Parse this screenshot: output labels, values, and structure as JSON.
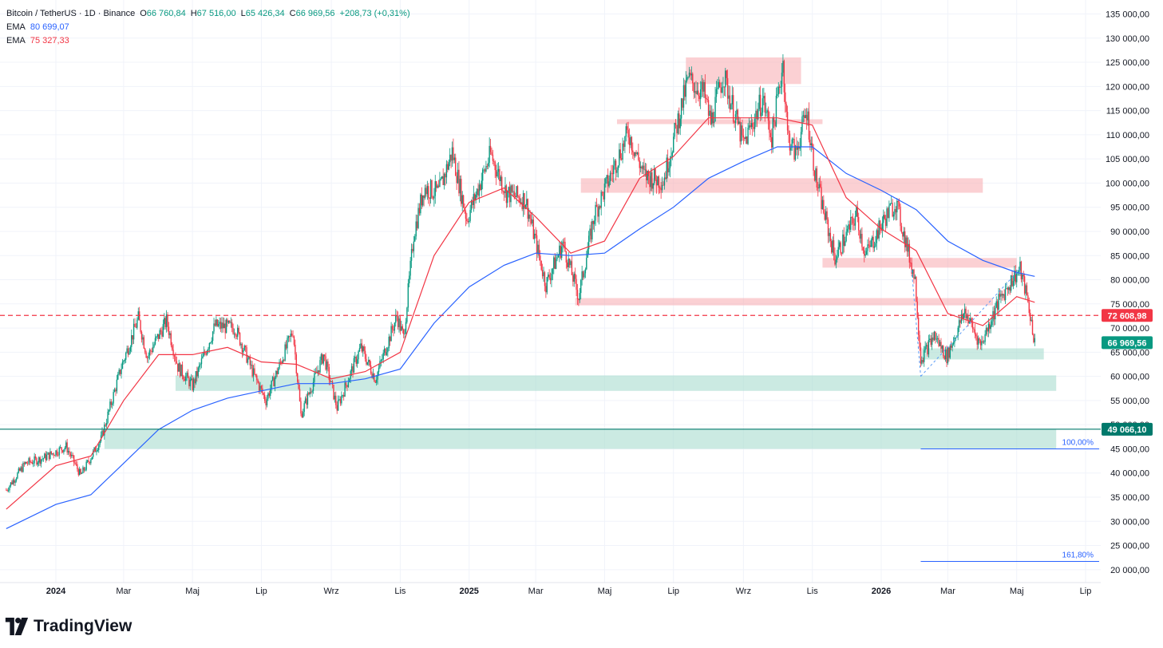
{
  "header": {
    "symbol": "Bitcoin / TetherUS · 1D · Binance",
    "open_label": "O",
    "open": "66 760,84",
    "high_label": "H",
    "high": "67 516,00",
    "low_label": "L",
    "low": "65 426,34",
    "close_label": "C",
    "close": "66 969,56",
    "change": "+208,73 (+0,31%)",
    "ema1_label": "EMA",
    "ema1_value": "80 699,07",
    "ema2_label": "EMA",
    "ema2_value": "75 327,33"
  },
  "brand": {
    "name": "TradingView"
  },
  "colors": {
    "up": "#089981",
    "down": "#f23645",
    "ema_fast": "#f23645",
    "ema_slow": "#2962ff",
    "resistance_zone": "#f7a9ae",
    "support_zone": "#a8dccf",
    "grid": "#f0f3fa"
  },
  "chart_data": {
    "type": "candlestick",
    "ylim": [
      20000,
      137000
    ],
    "x_start": "2023-11-18",
    "x_end": "2026-05-17",
    "y_ticks": [
      "135 000,00",
      "130 000,00",
      "125 000,00",
      "120 000,00",
      "115 000,00",
      "110 000,00",
      "105 000,00",
      "100 000,00",
      "95 000,00",
      "90 000,00",
      "85 000,00",
      "80 000,00",
      "75 000,00",
      "70 000,00",
      "65 000,00",
      "60 000,00",
      "55 000,00",
      "50 000,00",
      "45 000,00",
      "40 000,00",
      "35 000,00",
      "30 000,00",
      "25 000,00",
      "20 000,00"
    ],
    "x_ticks": [
      {
        "label": "2024",
        "date": "2024-01-01",
        "bold": true
      },
      {
        "label": "Mar",
        "date": "2024-03-01"
      },
      {
        "label": "Maj",
        "date": "2024-05-01"
      },
      {
        "label": "Lip",
        "date": "2024-07-01"
      },
      {
        "label": "Wrz",
        "date": "2024-09-01"
      },
      {
        "label": "Lis",
        "date": "2024-11-01"
      },
      {
        "label": "2025",
        "date": "2025-01-01",
        "bold": true
      },
      {
        "label": "Mar",
        "date": "2025-03-01"
      },
      {
        "label": "Maj",
        "date": "2025-05-01"
      },
      {
        "label": "Lip",
        "date": "2025-07-01"
      },
      {
        "label": "Wrz",
        "date": "2025-09-01"
      },
      {
        "label": "Lis",
        "date": "2025-11-01"
      },
      {
        "label": "2026",
        "date": "2026-01-01",
        "bold": true
      },
      {
        "label": "Mar",
        "date": "2026-03-01"
      },
      {
        "label": "Maj",
        "date": "2026-05-01"
      },
      {
        "label": "Lip",
        "date": "2026-07-01"
      }
    ],
    "price_path": [
      [
        "2023-11-18",
        36500
      ],
      [
        "2023-12-05",
        42000
      ],
      [
        "2023-12-20",
        43000
      ],
      [
        "2024-01-10",
        45500
      ],
      [
        "2024-01-23",
        39500
      ],
      [
        "2024-02-10",
        47000
      ],
      [
        "2024-02-28",
        62000
      ],
      [
        "2024-03-14",
        72000
      ],
      [
        "2024-03-22",
        64000
      ],
      [
        "2024-04-08",
        71500
      ],
      [
        "2024-04-18",
        62000
      ],
      [
        "2024-05-01",
        58000
      ],
      [
        "2024-05-21",
        70500
      ],
      [
        "2024-06-08",
        70000
      ],
      [
        "2024-06-24",
        60500
      ],
      [
        "2024-07-05",
        55000
      ],
      [
        "2024-07-29",
        69500
      ],
      [
        "2024-08-05",
        52000
      ],
      [
        "2024-08-25",
        64500
      ],
      [
        "2024-09-06",
        53500
      ],
      [
        "2024-09-27",
        66000
      ],
      [
        "2024-10-10",
        59500
      ],
      [
        "2024-10-29",
        72500
      ],
      [
        "2024-11-04",
        68000
      ],
      [
        "2024-11-13",
        89500
      ],
      [
        "2024-11-22",
        99000
      ],
      [
        "2024-12-05",
        98000
      ],
      [
        "2024-12-17",
        106500
      ],
      [
        "2024-12-30",
        92500
      ],
      [
        "2025-01-20",
        106000
      ],
      [
        "2025-02-03",
        98000
      ],
      [
        "2025-02-20",
        96500
      ],
      [
        "2025-03-10",
        79000
      ],
      [
        "2025-03-25",
        87500
      ],
      [
        "2025-04-08",
        76500
      ],
      [
        "2025-04-22",
        93500
      ],
      [
        "2025-05-22",
        110500
      ],
      [
        "2025-06-05",
        101500
      ],
      [
        "2025-06-22",
        100500
      ],
      [
        "2025-07-14",
        121500
      ],
      [
        "2025-07-28",
        118500
      ],
      [
        "2025-08-03",
        112500
      ],
      [
        "2025-08-14",
        122500
      ],
      [
        "2025-09-01",
        108000
      ],
      [
        "2025-09-18",
        117500
      ],
      [
        "2025-09-26",
        109500
      ],
      [
        "2025-10-06",
        125000
      ],
      [
        "2025-10-10",
        110000
      ],
      [
        "2025-10-17",
        106000
      ],
      [
        "2025-10-27",
        115000
      ],
      [
        "2025-11-04",
        101000
      ],
      [
        "2025-11-21",
        84500
      ],
      [
        "2025-12-10",
        93500
      ],
      [
        "2025-12-18",
        85000
      ],
      [
        "2026-01-05",
        93000
      ],
      [
        "2026-01-14",
        96000
      ],
      [
        "2026-01-31",
        80000
      ],
      [
        "2026-02-05",
        63500
      ],
      [
        "2026-02-17",
        68500
      ],
      [
        "2026-02-28",
        64000
      ],
      [
        "2026-03-16",
        73500
      ],
      [
        "2026-03-30",
        66500
      ],
      [
        "2026-04-15",
        75500
      ],
      [
        "2026-04-28",
        80500
      ],
      [
        "2026-05-04",
        82000
      ],
      [
        "2026-05-10",
        76500
      ],
      [
        "2026-05-17",
        66969.56
      ]
    ],
    "ema_fast_path": [
      [
        "2023-11-18",
        32500
      ],
      [
        "2024-01-01",
        41500
      ],
      [
        "2024-02-01",
        43500
      ],
      [
        "2024-03-01",
        55000
      ],
      [
        "2024-04-01",
        64500
      ],
      [
        "2024-05-01",
        64500
      ],
      [
        "2024-06-01",
        66000
      ],
      [
        "2024-07-01",
        63000
      ],
      [
        "2024-08-01",
        62500
      ],
      [
        "2024-09-01",
        59500
      ],
      [
        "2024-10-01",
        61000
      ],
      [
        "2024-11-01",
        65000
      ],
      [
        "2024-12-01",
        85000
      ],
      [
        "2025-01-01",
        96000
      ],
      [
        "2025-02-01",
        99000
      ],
      [
        "2025-03-01",
        93000
      ],
      [
        "2025-04-01",
        85500
      ],
      [
        "2025-05-01",
        88000
      ],
      [
        "2025-06-01",
        101000
      ],
      [
        "2025-07-01",
        105500
      ],
      [
        "2025-08-01",
        113500
      ],
      [
        "2025-09-01",
        113500
      ],
      [
        "2025-10-01",
        113500
      ],
      [
        "2025-11-01",
        112000
      ],
      [
        "2025-12-01",
        97000
      ],
      [
        "2026-01-01",
        90500
      ],
      [
        "2026-02-01",
        86000
      ],
      [
        "2026-03-01",
        73000
      ],
      [
        "2026-04-01",
        70500
      ],
      [
        "2026-05-01",
        76500
      ],
      [
        "2026-05-17",
        75327.33
      ]
    ],
    "ema_slow_path": [
      [
        "2023-11-18",
        28500
      ],
      [
        "2024-01-01",
        33500
      ],
      [
        "2024-02-01",
        35500
      ],
      [
        "2024-03-01",
        42000
      ],
      [
        "2024-04-01",
        49000
      ],
      [
        "2024-05-01",
        53000
      ],
      [
        "2024-06-01",
        55500
      ],
      [
        "2024-07-01",
        57000
      ],
      [
        "2024-08-01",
        58500
      ],
      [
        "2024-09-01",
        58500
      ],
      [
        "2024-10-01",
        59500
      ],
      [
        "2024-11-01",
        61500
      ],
      [
        "2024-12-01",
        71000
      ],
      [
        "2025-01-01",
        78500
      ],
      [
        "2025-02-01",
        83000
      ],
      [
        "2025-03-01",
        85500
      ],
      [
        "2025-04-01",
        85000
      ],
      [
        "2025-05-01",
        85500
      ],
      [
        "2025-06-01",
        90500
      ],
      [
        "2025-07-01",
        95000
      ],
      [
        "2025-08-01",
        101000
      ],
      [
        "2025-09-01",
        104500
      ],
      [
        "2025-10-01",
        107500
      ],
      [
        "2025-11-01",
        107500
      ],
      [
        "2025-12-01",
        102000
      ],
      [
        "2026-01-01",
        98500
      ],
      [
        "2026-02-01",
        94500
      ],
      [
        "2026-03-01",
        88000
      ],
      [
        "2026-04-01",
        84000
      ],
      [
        "2026-05-01",
        81500
      ],
      [
        "2026-05-17",
        80699.07
      ]
    ],
    "resistance_zones": [
      {
        "from": "2025-07-12",
        "to": "2025-10-22",
        "low": 120500,
        "high": 126000
      },
      {
        "from": "2025-05-12",
        "to": "2025-11-10",
        "low": 112500,
        "high": 113200
      },
      {
        "from": "2025-04-10",
        "to": "2026-04-01",
        "low": 98000,
        "high": 101000
      },
      {
        "from": "2025-11-10",
        "to": "2026-05-01",
        "low": 82500,
        "high": 84500
      },
      {
        "from": "2025-04-05",
        "to": "2026-04-10",
        "low": 74700,
        "high": 76200
      }
    ],
    "support_zones": [
      {
        "from": "2026-02-06",
        "to": "2026-05-25",
        "low": 63500,
        "high": 65800
      },
      {
        "from": "2024-04-16",
        "to": "2026-06-05",
        "low": 57000,
        "high": 60200
      },
      {
        "from": "2024-02-13",
        "to": "2026-06-05",
        "low": 45000,
        "high": 49100
      }
    ],
    "levels": [
      {
        "label": "72 608,98",
        "value": 72608.98,
        "style": "dashed",
        "color": "#f23645"
      },
      {
        "label": "66 969,56",
        "value": 66969.56,
        "style": "none",
        "color": "#089981"
      },
      {
        "label": "49 066,10",
        "value": 49066.1,
        "style": "solid",
        "color": "#00796b"
      }
    ],
    "fib_levels": [
      {
        "label": "100,00%",
        "value": 45000,
        "from": "2026-02-05",
        "to": "2026-07-20"
      },
      {
        "label": "161,80%",
        "value": 21700,
        "from": "2026-02-05",
        "to": "2026-07-20"
      }
    ],
    "fib_anchor": [
      [
        "2026-02-05",
        60000
      ],
      [
        "2026-05-05",
        82500
      ]
    ]
  }
}
